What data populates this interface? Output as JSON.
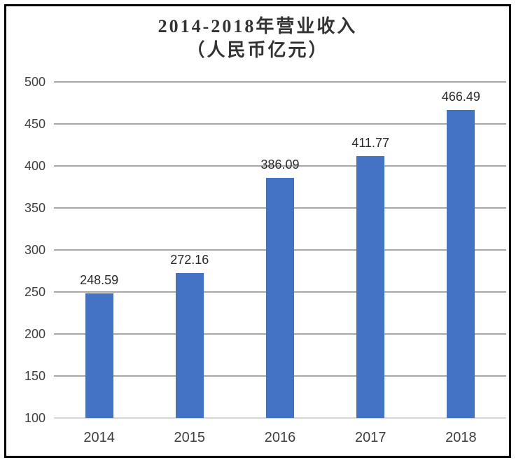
{
  "frame": {
    "border_color": "#000000",
    "background_color": "#ffffff"
  },
  "title": {
    "line1": "2014-2018年营业收入",
    "line2": "（人民币亿元）",
    "color": "#333333"
  },
  "chart_data": {
    "type": "bar",
    "title": "2014-2018年营业收入（人民币亿元）",
    "categories": [
      "2014",
      "2015",
      "2016",
      "2017",
      "2018"
    ],
    "values": [
      248.59,
      272.16,
      386.09,
      411.77,
      466.49
    ],
    "data_labels": [
      "248.59",
      "272.16",
      "386.09",
      "411.77",
      "466.49"
    ],
    "xlabel": "",
    "ylabel": "",
    "ylim": [
      100,
      500
    ],
    "yticks": [
      100,
      150,
      200,
      250,
      300,
      350,
      400,
      450,
      500
    ],
    "grid": true,
    "legend": false,
    "colors": {
      "bar": "#4472C4",
      "gridline": "#A8A8A8",
      "baseline": "#D6D6D6",
      "tick_label": "#404040",
      "data_label": "#2B2B2B"
    }
  }
}
